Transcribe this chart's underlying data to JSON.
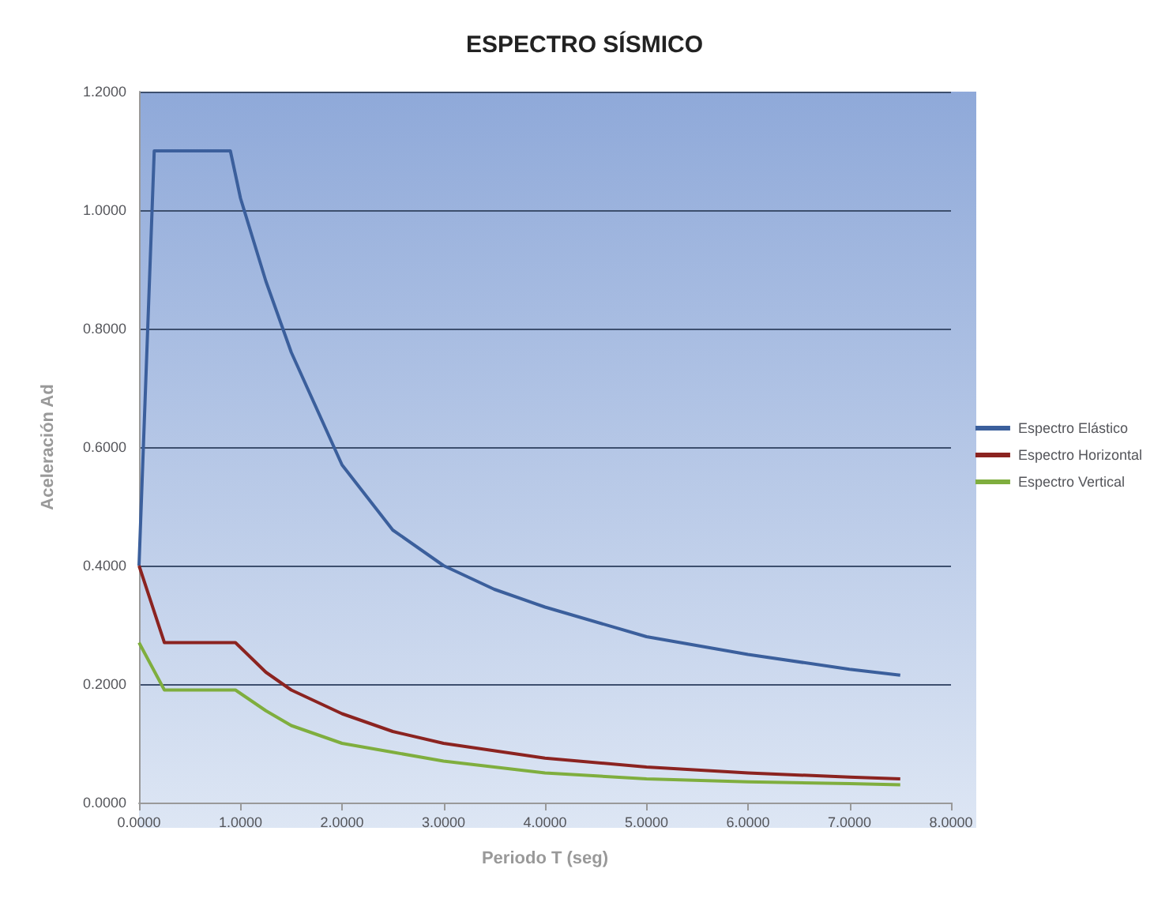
{
  "chart_data": {
    "type": "line",
    "title": "ESPECTRO SÍSMICO",
    "xlabel": "Periodo T (seg)",
    "ylabel": "Aceleración Ad",
    "xlim": [
      0,
      8
    ],
    "xticks": [
      {
        "value": 0,
        "label": "0.0000"
      },
      {
        "value": 1,
        "label": "1.0000"
      },
      {
        "value": 2,
        "label": "2.0000"
      },
      {
        "value": 3,
        "label": "3.0000"
      },
      {
        "value": 4,
        "label": "4.0000"
      },
      {
        "value": 5,
        "label": "5.0000"
      },
      {
        "value": 6,
        "label": "6.0000"
      },
      {
        "value": 7,
        "label": "7.0000"
      },
      {
        "value": 8,
        "label": "8.0000"
      }
    ],
    "ylim": [
      0,
      1.2
    ],
    "yticks": [
      {
        "value": 0,
        "label": "0.0000"
      },
      {
        "value": 0.2,
        "label": "0.2000"
      },
      {
        "value": 0.4,
        "label": "0.4000"
      },
      {
        "value": 0.6,
        "label": "0.6000"
      },
      {
        "value": 0.8,
        "label": "0.8000"
      },
      {
        "value": 1,
        "label": "1.0000"
      },
      {
        "value": 1.2,
        "label": "1.2000"
      }
    ],
    "grid": "y",
    "legend": "right",
    "marker": "none",
    "line_style": "solid",
    "series": [
      {
        "name": "Espectro Elástico",
        "color": "#3b5f9c",
        "x": [
          0,
          0.15,
          0.9,
          1.0,
          1.25,
          1.5,
          2.0,
          2.5,
          3.0,
          3.5,
          4.0,
          5.0,
          6.0,
          7.0,
          7.5
        ],
        "values": [
          0.4,
          1.1,
          1.1,
          1.02,
          0.88,
          0.76,
          0.57,
          0.46,
          0.4,
          0.36,
          0.33,
          0.28,
          0.25,
          0.225,
          0.215
        ]
      },
      {
        "name": "Espectro Horizontal",
        "color": "#8b2320",
        "x": [
          0,
          0.25,
          0.95,
          1.25,
          1.5,
          2.0,
          2.5,
          3.0,
          4.0,
          5.0,
          6.0,
          7.0,
          7.5
        ],
        "values": [
          0.4,
          0.27,
          0.27,
          0.22,
          0.19,
          0.15,
          0.12,
          0.1,
          0.075,
          0.06,
          0.05,
          0.043,
          0.04
        ]
      },
      {
        "name": "Espectro Vertical",
        "color": "#7fae3e",
        "x": [
          0,
          0.25,
          0.95,
          1.25,
          1.5,
          2.0,
          2.5,
          3.0,
          4.0,
          5.0,
          6.0,
          7.0,
          7.5
        ],
        "values": [
          0.27,
          0.19,
          0.19,
          0.155,
          0.13,
          0.1,
          0.085,
          0.07,
          0.05,
          0.04,
          0.035,
          0.032,
          0.03
        ]
      }
    ]
  }
}
